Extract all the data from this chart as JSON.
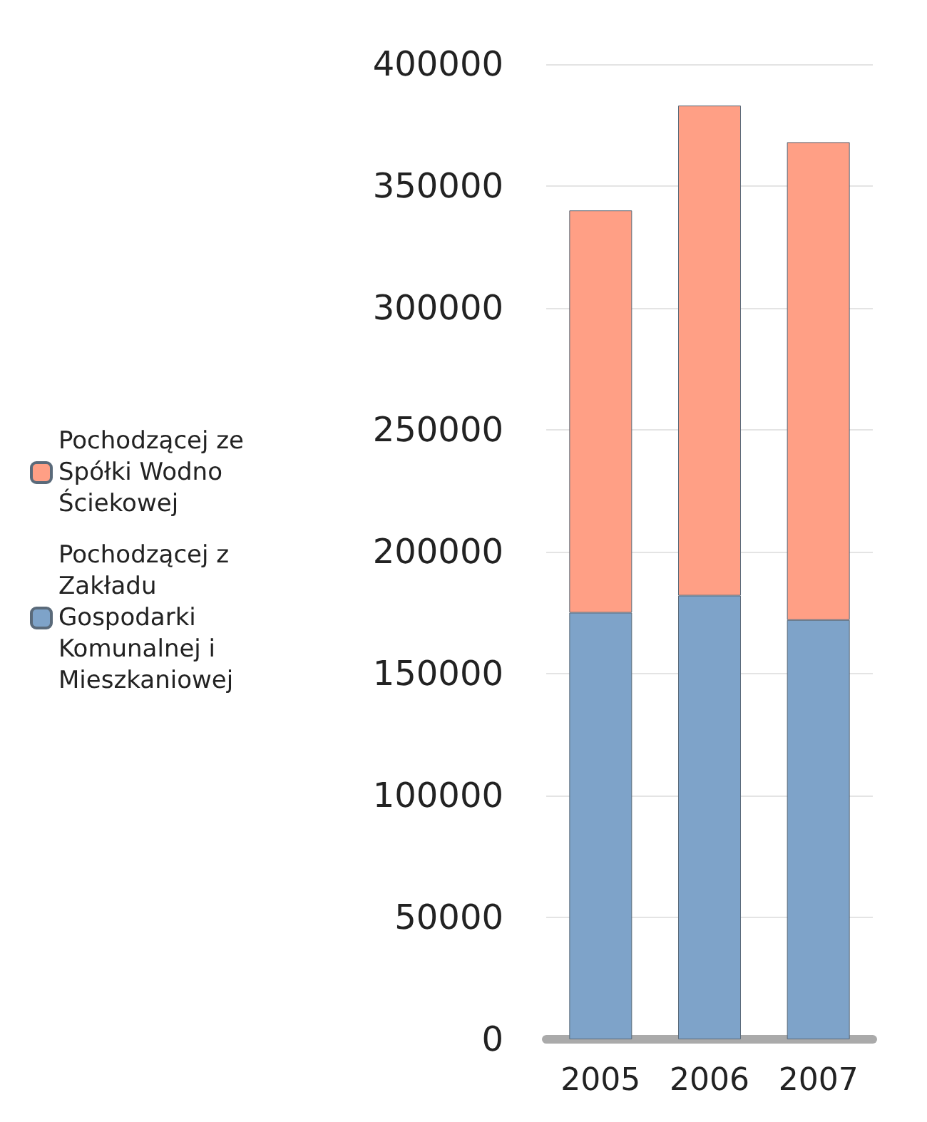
{
  "chart_data": {
    "type": "bar",
    "stacked": true,
    "categories": [
      "2005",
      "2006",
      "2007"
    ],
    "series": [
      {
        "name": "Pochodzącej z Zakładu Gospodarki Komunalnej i Mieszkaniowej",
        "color": "#7ea3c9",
        "values": [
          175000,
          182000,
          172000
        ]
      },
      {
        "name": "Pochodzącej ze Spółki Wodno Ściekowej",
        "color": "#ff9f85",
        "values": [
          165000,
          201000,
          196000
        ]
      }
    ],
    "ylim": [
      0,
      400000
    ],
    "yticks": [
      0,
      50000,
      100000,
      150000,
      200000,
      250000,
      300000,
      350000,
      400000
    ],
    "grid": "y",
    "legend": "left"
  }
}
